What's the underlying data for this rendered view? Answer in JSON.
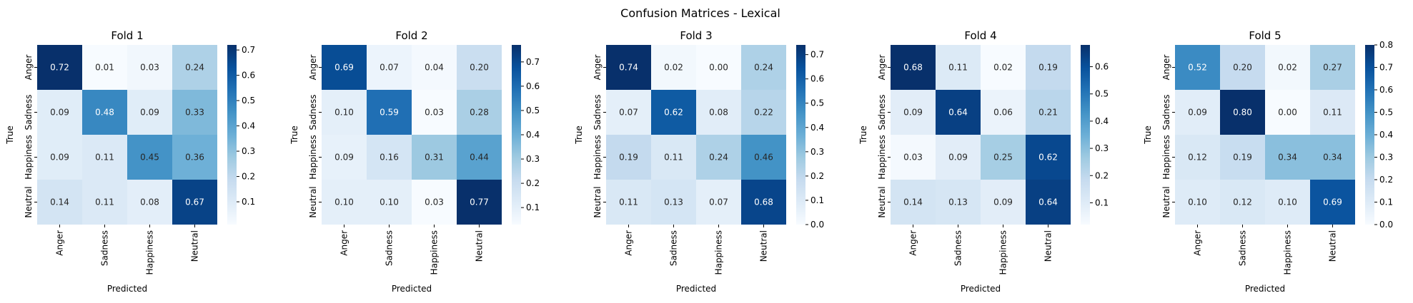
{
  "figure": {
    "title": "Confusion Matrices - Lexical"
  },
  "colors": {
    "low": "#f7fbff",
    "high": "#08306b"
  },
  "chart_data": [
    {
      "type": "heatmap",
      "title": "Fold 1",
      "xlabel": "Predicted",
      "ylabel": "True",
      "x_categories": [
        "Anger",
        "Sadness",
        "Happiness",
        "Neutral"
      ],
      "y_categories": [
        "Anger",
        "Sadness",
        "Happiness",
        "Neutral"
      ],
      "values": [
        [
          0.72,
          0.01,
          0.03,
          0.24
        ],
        [
          0.09,
          0.48,
          0.09,
          0.33
        ],
        [
          0.09,
          0.11,
          0.45,
          0.36
        ],
        [
          0.14,
          0.11,
          0.08,
          0.67
        ]
      ],
      "colorbar": {
        "min": 0.01,
        "max": 0.72,
        "ticks": [
          0.1,
          0.2,
          0.3,
          0.4,
          0.5,
          0.6,
          0.7
        ],
        "tick_labels": [
          "0.1",
          "0.2",
          "0.3",
          "0.4",
          "0.5",
          "0.6",
          "0.7"
        ]
      },
      "cmap": "Blues"
    },
    {
      "type": "heatmap",
      "title": "Fold 2",
      "xlabel": "Predicted",
      "ylabel": "True",
      "x_categories": [
        "Anger",
        "Sadness",
        "Happiness",
        "Neutral"
      ],
      "y_categories": [
        "Anger",
        "Sadness",
        "Happiness",
        "Neutral"
      ],
      "values": [
        [
          0.69,
          0.07,
          0.04,
          0.2
        ],
        [
          0.1,
          0.59,
          0.03,
          0.28
        ],
        [
          0.09,
          0.16,
          0.31,
          0.44
        ],
        [
          0.1,
          0.1,
          0.03,
          0.77
        ]
      ],
      "colorbar": {
        "min": 0.03,
        "max": 0.77,
        "ticks": [
          0.1,
          0.2,
          0.3,
          0.4,
          0.5,
          0.6,
          0.7
        ],
        "tick_labels": [
          "0.1",
          "0.2",
          "0.3",
          "0.4",
          "0.5",
          "0.6",
          "0.7"
        ]
      },
      "cmap": "Blues"
    },
    {
      "type": "heatmap",
      "title": "Fold 3",
      "xlabel": "Predicted",
      "ylabel": "True",
      "x_categories": [
        "Anger",
        "Sadness",
        "Happiness",
        "Neutral"
      ],
      "y_categories": [
        "Anger",
        "Sadness",
        "Happiness",
        "Neutral"
      ],
      "values": [
        [
          0.74,
          0.02,
          0.0,
          0.24
        ],
        [
          0.07,
          0.62,
          0.08,
          0.22
        ],
        [
          0.19,
          0.11,
          0.24,
          0.46
        ],
        [
          0.11,
          0.13,
          0.07,
          0.68
        ]
      ],
      "colorbar": {
        "min": 0.0,
        "max": 0.74,
        "ticks": [
          0.0,
          0.1,
          0.2,
          0.3,
          0.4,
          0.5,
          0.6,
          0.7
        ],
        "tick_labels": [
          "0.0",
          "0.1",
          "0.2",
          "0.3",
          "0.4",
          "0.5",
          "0.6",
          "0.7"
        ]
      },
      "cmap": "Blues"
    },
    {
      "type": "heatmap",
      "title": "Fold 4",
      "xlabel": "Predicted",
      "ylabel": "True",
      "x_categories": [
        "Anger",
        "Sadness",
        "Happiness",
        "Neutral"
      ],
      "y_categories": [
        "Anger",
        "Sadness",
        "Happiness",
        "Neutral"
      ],
      "values": [
        [
          0.68,
          0.11,
          0.02,
          0.19
        ],
        [
          0.09,
          0.64,
          0.06,
          0.21
        ],
        [
          0.03,
          0.09,
          0.25,
          0.62
        ],
        [
          0.14,
          0.13,
          0.09,
          0.64
        ]
      ],
      "colorbar": {
        "min": 0.02,
        "max": 0.68,
        "ticks": [
          0.1,
          0.2,
          0.3,
          0.4,
          0.5,
          0.6
        ],
        "tick_labels": [
          "0.1",
          "0.2",
          "0.3",
          "0.4",
          "0.5",
          "0.6"
        ]
      },
      "cmap": "Blues"
    },
    {
      "type": "heatmap",
      "title": "Fold 5",
      "xlabel": "Predicted",
      "ylabel": "True",
      "x_categories": [
        "Anger",
        "Sadness",
        "Happiness",
        "Neutral"
      ],
      "y_categories": [
        "Anger",
        "Sadness",
        "Happiness",
        "Neutral"
      ],
      "values": [
        [
          0.52,
          0.2,
          0.02,
          0.27
        ],
        [
          0.09,
          0.8,
          0.0,
          0.11
        ],
        [
          0.12,
          0.19,
          0.34,
          0.34
        ],
        [
          0.1,
          0.12,
          0.1,
          0.69
        ]
      ],
      "colorbar": {
        "min": 0.0,
        "max": 0.8,
        "ticks": [
          0.0,
          0.1,
          0.2,
          0.3,
          0.4,
          0.5,
          0.6,
          0.7,
          0.8
        ],
        "tick_labels": [
          "0.0",
          "0.1",
          "0.2",
          "0.3",
          "0.4",
          "0.5",
          "0.6",
          "0.7",
          "0.8"
        ]
      },
      "cmap": "Blues"
    }
  ]
}
